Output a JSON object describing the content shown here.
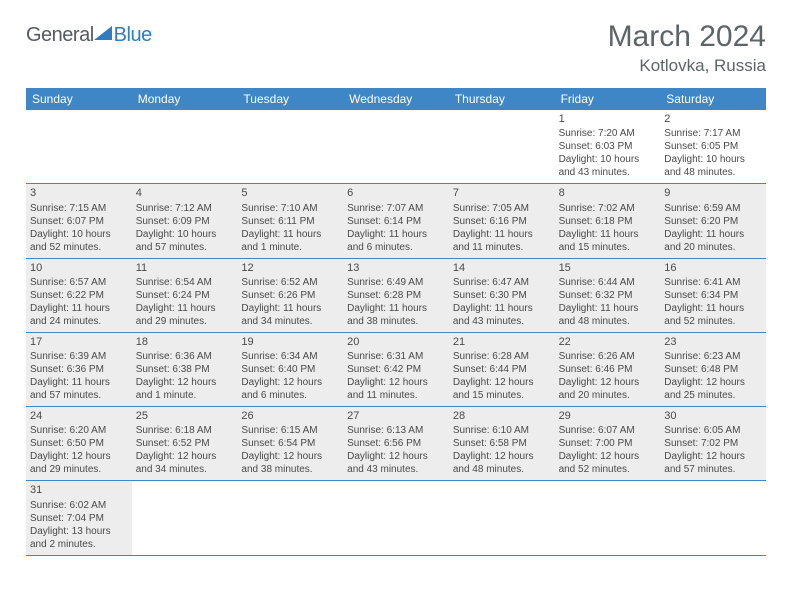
{
  "logo": {
    "general": "General",
    "blue": "Blue"
  },
  "title": "March 2024",
  "location": "Kotlovka, Russia",
  "weekdays": [
    "Sunday",
    "Monday",
    "Tuesday",
    "Wednesday",
    "Thursday",
    "Friday",
    "Saturday"
  ],
  "colors": {
    "header_bar": "#3e86c6",
    "shaded_cell": "#ededed",
    "title_text": "#5d6468",
    "logo_blue": "#2f7cc0",
    "logo_gray": "#555b61"
  },
  "weeks": [
    [
      {
        "shaded": false
      },
      {
        "shaded": false
      },
      {
        "shaded": false
      },
      {
        "shaded": false
      },
      {
        "shaded": false
      },
      {
        "num": "1",
        "shaded": false,
        "sunrise": "Sunrise: 7:20 AM",
        "sunset": "Sunset: 6:03 PM",
        "day1": "Daylight: 10 hours",
        "day2": "and 43 minutes."
      },
      {
        "num": "2",
        "shaded": false,
        "sunrise": "Sunrise: 7:17 AM",
        "sunset": "Sunset: 6:05 PM",
        "day1": "Daylight: 10 hours",
        "day2": "and 48 minutes."
      }
    ],
    [
      {
        "num": "3",
        "shaded": true,
        "sunrise": "Sunrise: 7:15 AM",
        "sunset": "Sunset: 6:07 PM",
        "day1": "Daylight: 10 hours",
        "day2": "and 52 minutes."
      },
      {
        "num": "4",
        "shaded": true,
        "sunrise": "Sunrise: 7:12 AM",
        "sunset": "Sunset: 6:09 PM",
        "day1": "Daylight: 10 hours",
        "day2": "and 57 minutes."
      },
      {
        "num": "5",
        "shaded": true,
        "sunrise": "Sunrise: 7:10 AM",
        "sunset": "Sunset: 6:11 PM",
        "day1": "Daylight: 11 hours",
        "day2": "and 1 minute."
      },
      {
        "num": "6",
        "shaded": true,
        "sunrise": "Sunrise: 7:07 AM",
        "sunset": "Sunset: 6:14 PM",
        "day1": "Daylight: 11 hours",
        "day2": "and 6 minutes."
      },
      {
        "num": "7",
        "shaded": true,
        "sunrise": "Sunrise: 7:05 AM",
        "sunset": "Sunset: 6:16 PM",
        "day1": "Daylight: 11 hours",
        "day2": "and 11 minutes."
      },
      {
        "num": "8",
        "shaded": true,
        "sunrise": "Sunrise: 7:02 AM",
        "sunset": "Sunset: 6:18 PM",
        "day1": "Daylight: 11 hours",
        "day2": "and 15 minutes."
      },
      {
        "num": "9",
        "shaded": true,
        "sunrise": "Sunrise: 6:59 AM",
        "sunset": "Sunset: 6:20 PM",
        "day1": "Daylight: 11 hours",
        "day2": "and 20 minutes."
      }
    ],
    [
      {
        "num": "10",
        "shaded": true,
        "sunrise": "Sunrise: 6:57 AM",
        "sunset": "Sunset: 6:22 PM",
        "day1": "Daylight: 11 hours",
        "day2": "and 24 minutes."
      },
      {
        "num": "11",
        "shaded": true,
        "sunrise": "Sunrise: 6:54 AM",
        "sunset": "Sunset: 6:24 PM",
        "day1": "Daylight: 11 hours",
        "day2": "and 29 minutes."
      },
      {
        "num": "12",
        "shaded": true,
        "sunrise": "Sunrise: 6:52 AM",
        "sunset": "Sunset: 6:26 PM",
        "day1": "Daylight: 11 hours",
        "day2": "and 34 minutes."
      },
      {
        "num": "13",
        "shaded": true,
        "sunrise": "Sunrise: 6:49 AM",
        "sunset": "Sunset: 6:28 PM",
        "day1": "Daylight: 11 hours",
        "day2": "and 38 minutes."
      },
      {
        "num": "14",
        "shaded": true,
        "sunrise": "Sunrise: 6:47 AM",
        "sunset": "Sunset: 6:30 PM",
        "day1": "Daylight: 11 hours",
        "day2": "and 43 minutes."
      },
      {
        "num": "15",
        "shaded": true,
        "sunrise": "Sunrise: 6:44 AM",
        "sunset": "Sunset: 6:32 PM",
        "day1": "Daylight: 11 hours",
        "day2": "and 48 minutes."
      },
      {
        "num": "16",
        "shaded": true,
        "sunrise": "Sunrise: 6:41 AM",
        "sunset": "Sunset: 6:34 PM",
        "day1": "Daylight: 11 hours",
        "day2": "and 52 minutes."
      }
    ],
    [
      {
        "num": "17",
        "shaded": true,
        "sunrise": "Sunrise: 6:39 AM",
        "sunset": "Sunset: 6:36 PM",
        "day1": "Daylight: 11 hours",
        "day2": "and 57 minutes."
      },
      {
        "num": "18",
        "shaded": true,
        "sunrise": "Sunrise: 6:36 AM",
        "sunset": "Sunset: 6:38 PM",
        "day1": "Daylight: 12 hours",
        "day2": "and 1 minute."
      },
      {
        "num": "19",
        "shaded": true,
        "sunrise": "Sunrise: 6:34 AM",
        "sunset": "Sunset: 6:40 PM",
        "day1": "Daylight: 12 hours",
        "day2": "and 6 minutes."
      },
      {
        "num": "20",
        "shaded": true,
        "sunrise": "Sunrise: 6:31 AM",
        "sunset": "Sunset: 6:42 PM",
        "day1": "Daylight: 12 hours",
        "day2": "and 11 minutes."
      },
      {
        "num": "21",
        "shaded": true,
        "sunrise": "Sunrise: 6:28 AM",
        "sunset": "Sunset: 6:44 PM",
        "day1": "Daylight: 12 hours",
        "day2": "and 15 minutes."
      },
      {
        "num": "22",
        "shaded": true,
        "sunrise": "Sunrise: 6:26 AM",
        "sunset": "Sunset: 6:46 PM",
        "day1": "Daylight: 12 hours",
        "day2": "and 20 minutes."
      },
      {
        "num": "23",
        "shaded": true,
        "sunrise": "Sunrise: 6:23 AM",
        "sunset": "Sunset: 6:48 PM",
        "day1": "Daylight: 12 hours",
        "day2": "and 25 minutes."
      }
    ],
    [
      {
        "num": "24",
        "shaded": true,
        "sunrise": "Sunrise: 6:20 AM",
        "sunset": "Sunset: 6:50 PM",
        "day1": "Daylight: 12 hours",
        "day2": "and 29 minutes."
      },
      {
        "num": "25",
        "shaded": true,
        "sunrise": "Sunrise: 6:18 AM",
        "sunset": "Sunset: 6:52 PM",
        "day1": "Daylight: 12 hours",
        "day2": "and 34 minutes."
      },
      {
        "num": "26",
        "shaded": true,
        "sunrise": "Sunrise: 6:15 AM",
        "sunset": "Sunset: 6:54 PM",
        "day1": "Daylight: 12 hours",
        "day2": "and 38 minutes."
      },
      {
        "num": "27",
        "shaded": true,
        "sunrise": "Sunrise: 6:13 AM",
        "sunset": "Sunset: 6:56 PM",
        "day1": "Daylight: 12 hours",
        "day2": "and 43 minutes."
      },
      {
        "num": "28",
        "shaded": true,
        "sunrise": "Sunrise: 6:10 AM",
        "sunset": "Sunset: 6:58 PM",
        "day1": "Daylight: 12 hours",
        "day2": "and 48 minutes."
      },
      {
        "num": "29",
        "shaded": true,
        "sunrise": "Sunrise: 6:07 AM",
        "sunset": "Sunset: 7:00 PM",
        "day1": "Daylight: 12 hours",
        "day2": "and 52 minutes."
      },
      {
        "num": "30",
        "shaded": true,
        "sunrise": "Sunrise: 6:05 AM",
        "sunset": "Sunset: 7:02 PM",
        "day1": "Daylight: 12 hours",
        "day2": "and 57 minutes."
      }
    ],
    [
      {
        "num": "31",
        "shaded": true,
        "sunrise": "Sunrise: 6:02 AM",
        "sunset": "Sunset: 7:04 PM",
        "day1": "Daylight: 13 hours",
        "day2": "and 2 minutes."
      },
      {
        "shaded": false
      },
      {
        "shaded": false
      },
      {
        "shaded": false
      },
      {
        "shaded": false
      },
      {
        "shaded": false
      },
      {
        "shaded": false
      }
    ]
  ]
}
